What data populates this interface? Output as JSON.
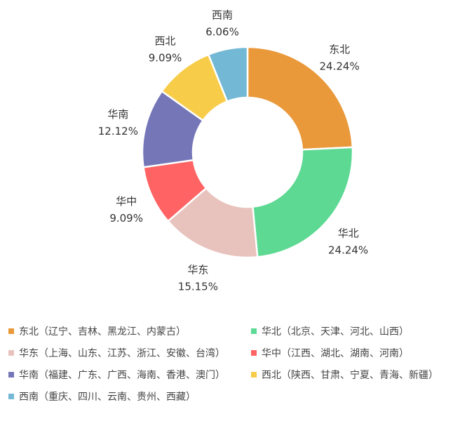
{
  "chart_data": {
    "type": "pie",
    "variant": "donut",
    "title": "",
    "categories": [
      "东北",
      "华北",
      "华东",
      "华中",
      "华南",
      "西北",
      "西南"
    ],
    "values": [
      24.24,
      24.24,
      15.15,
      9.09,
      12.12,
      9.09,
      6.06
    ],
    "value_labels": [
      "24.24%",
      "24.24%",
      "15.15%",
      "9.09%",
      "12.12%",
      "9.09%",
      "6.06%"
    ],
    "colors": [
      "#E9983A",
      "#5DD993",
      "#E8C3BE",
      "#FF6363",
      "#7476B8",
      "#F7CC48",
      "#73B8D5"
    ],
    "legend_position": "bottom",
    "legend": [
      {
        "label": "东北（辽宁、吉林、黑龙江、内蒙古）",
        "color": "#E9983A"
      },
      {
        "label": "华北（北京、天津、河北、山西）",
        "color": "#5DD993"
      },
      {
        "label": "华东（上海、山东、江苏、浙江、安徽、台湾）",
        "color": "#E8C3BE"
      },
      {
        "label": "华中（江西、湖北、湖南、河南）",
        "color": "#FF6363"
      },
      {
        "label": "华南（福建、广东、广西、海南、香港、澳门）",
        "color": "#7476B8"
      },
      {
        "label": "西北（陕西、甘肃、宁夏、青海、新疆）",
        "color": "#F7CC48"
      },
      {
        "label": "西南（重庆、四川、云南、贵州、西藏）",
        "color": "#73B8D5"
      }
    ]
  }
}
